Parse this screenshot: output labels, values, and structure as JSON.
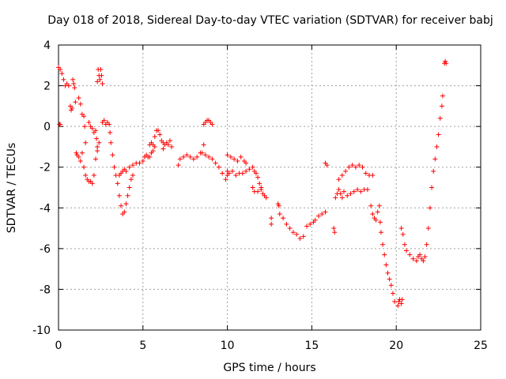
{
  "chart_data": {
    "type": "scatter",
    "title": "Day 018 of 2018, Sidereal Day-to-day VTEC variation (SDTVAR) for receiver babj",
    "xlabel": "GPS time / hours",
    "ylabel": "SDTVAR / TECUs",
    "xlim": [
      0,
      25
    ],
    "ylim": [
      -10,
      4
    ],
    "xticks": [
      0,
      5,
      10,
      15,
      20,
      25
    ],
    "yticks": [
      -10,
      -8,
      -6,
      -4,
      -2,
      0,
      2,
      4
    ],
    "grid": true,
    "marker": "+",
    "color": "#ff0000",
    "series": [
      {
        "name": "SDTVAR",
        "points": [
          [
            0.0,
            2.9
          ],
          [
            0.1,
            2.8
          ],
          [
            0.2,
            2.6
          ],
          [
            0.3,
            2.3
          ],
          [
            0.4,
            2.0
          ],
          [
            0.5,
            2.1
          ],
          [
            0.6,
            2.0
          ],
          [
            0.05,
            0.1
          ],
          [
            0.1,
            0.1
          ],
          [
            0.7,
            1.0
          ],
          [
            0.75,
            0.8
          ],
          [
            0.8,
            0.9
          ],
          [
            0.85,
            2.3
          ],
          [
            0.9,
            2.1
          ],
          [
            0.95,
            1.9
          ],
          [
            1.0,
            1.2
          ],
          [
            1.05,
            -1.3
          ],
          [
            1.1,
            -1.4
          ],
          [
            1.2,
            -1.5
          ],
          [
            1.3,
            -1.7
          ],
          [
            1.4,
            -1.3
          ],
          [
            1.2,
            1.4
          ],
          [
            1.3,
            1.1
          ],
          [
            1.4,
            0.6
          ],
          [
            1.5,
            0.5
          ],
          [
            1.55,
            0.0
          ],
          [
            1.6,
            -0.8
          ],
          [
            1.5,
            -2.0
          ],
          [
            1.6,
            -2.4
          ],
          [
            1.7,
            -2.6
          ],
          [
            1.8,
            -2.7
          ],
          [
            1.9,
            -2.7
          ],
          [
            2.0,
            -2.8
          ],
          [
            2.1,
            -2.4
          ],
          [
            2.2,
            -1.6
          ],
          [
            2.3,
            -1.0
          ],
          [
            2.4,
            -0.8
          ],
          [
            1.8,
            0.2
          ],
          [
            1.9,
            0.0
          ],
          [
            2.0,
            -0.1
          ],
          [
            2.1,
            -0.3
          ],
          [
            2.2,
            -0.2
          ],
          [
            2.25,
            -0.6
          ],
          [
            2.3,
            -1.2
          ],
          [
            2.3,
            2.2
          ],
          [
            2.35,
            2.8
          ],
          [
            2.4,
            2.5
          ],
          [
            2.45,
            2.3
          ],
          [
            2.5,
            2.8
          ],
          [
            2.55,
            2.5
          ],
          [
            2.6,
            2.1
          ],
          [
            2.6,
            0.2
          ],
          [
            2.7,
            0.3
          ],
          [
            2.8,
            0.1
          ],
          [
            2.9,
            0.2
          ],
          [
            3.0,
            0.1
          ],
          [
            3.05,
            -0.3
          ],
          [
            3.1,
            -0.8
          ],
          [
            3.2,
            -1.4
          ],
          [
            3.3,
            -2.0
          ],
          [
            3.4,
            -2.4
          ],
          [
            3.5,
            -2.8
          ],
          [
            3.6,
            -3.4
          ],
          [
            3.7,
            -3.9
          ],
          [
            3.8,
            -4.3
          ],
          [
            3.9,
            -4.2
          ],
          [
            4.0,
            -3.8
          ],
          [
            4.1,
            -3.4
          ],
          [
            4.2,
            -3.0
          ],
          [
            4.3,
            -2.6
          ],
          [
            4.4,
            -2.4
          ],
          [
            3.6,
            -2.4
          ],
          [
            3.7,
            -2.3
          ],
          [
            3.8,
            -2.2
          ],
          [
            3.9,
            -2.1
          ],
          [
            4.0,
            -2.2
          ],
          [
            4.2,
            -2.0
          ],
          [
            4.4,
            -1.9
          ],
          [
            4.6,
            -1.8
          ],
          [
            4.8,
            -1.8
          ],
          [
            5.0,
            -1.7
          ],
          [
            5.1,
            -1.5
          ],
          [
            5.2,
            -1.4
          ],
          [
            5.3,
            -1.5
          ],
          [
            5.4,
            -1.5
          ],
          [
            5.5,
            -1.3
          ],
          [
            5.6,
            -1.2
          ],
          [
            5.7,
            -1.0
          ],
          [
            5.4,
            -0.9
          ],
          [
            5.5,
            -0.8
          ],
          [
            5.6,
            -0.9
          ],
          [
            5.7,
            -0.5
          ],
          [
            5.8,
            -0.2
          ],
          [
            5.9,
            -0.2
          ],
          [
            6.0,
            -0.4
          ],
          [
            6.1,
            -0.7
          ],
          [
            6.2,
            -0.8
          ],
          [
            6.3,
            -0.9
          ],
          [
            6.2,
            -1.1
          ],
          [
            6.4,
            -0.8
          ],
          [
            6.5,
            -0.9
          ],
          [
            6.6,
            -0.7
          ],
          [
            6.7,
            -1.0
          ],
          [
            7.1,
            -1.9
          ],
          [
            7.2,
            -1.6
          ],
          [
            7.4,
            -1.5
          ],
          [
            7.6,
            -1.4
          ],
          [
            7.8,
            -1.5
          ],
          [
            8.0,
            -1.6
          ],
          [
            8.2,
            -1.5
          ],
          [
            8.4,
            -1.3
          ],
          [
            8.5,
            -1.3
          ],
          [
            8.6,
            -0.9
          ],
          [
            8.6,
            0.1
          ],
          [
            8.7,
            0.2
          ],
          [
            8.8,
            0.3
          ],
          [
            8.9,
            0.3
          ],
          [
            9.0,
            0.2
          ],
          [
            9.1,
            0.1
          ],
          [
            8.7,
            -1.4
          ],
          [
            8.9,
            -1.5
          ],
          [
            9.1,
            -1.6
          ],
          [
            9.3,
            -1.8
          ],
          [
            9.5,
            -2.0
          ],
          [
            9.7,
            -2.3
          ],
          [
            9.9,
            -2.6
          ],
          [
            10.0,
            -2.4
          ],
          [
            10.0,
            -1.4
          ],
          [
            10.2,
            -1.5
          ],
          [
            10.4,
            -1.6
          ],
          [
            10.6,
            -1.7
          ],
          [
            10.8,
            -1.5
          ],
          [
            11.0,
            -1.7
          ],
          [
            11.1,
            -1.8
          ],
          [
            10.0,
            -2.2
          ],
          [
            10.1,
            -2.3
          ],
          [
            10.3,
            -2.2
          ],
          [
            10.5,
            -2.4
          ],
          [
            10.7,
            -2.3
          ],
          [
            10.9,
            -2.3
          ],
          [
            11.1,
            -2.2
          ],
          [
            11.3,
            -2.1
          ],
          [
            11.5,
            -2.0
          ],
          [
            11.6,
            -2.2
          ],
          [
            11.5,
            -3.0
          ],
          [
            11.6,
            -3.2
          ],
          [
            11.8,
            -3.2
          ],
          [
            12.0,
            -3.1
          ],
          [
            12.1,
            -3.3
          ],
          [
            12.2,
            -3.4
          ],
          [
            12.3,
            -3.5
          ],
          [
            11.7,
            -2.3
          ],
          [
            11.8,
            -2.5
          ],
          [
            11.9,
            -2.8
          ],
          [
            12.0,
            -3.0
          ],
          [
            12.6,
            -4.5
          ],
          [
            12.6,
            -4.8
          ],
          [
            13.0,
            -3.8
          ],
          [
            13.05,
            -3.9
          ],
          [
            13.1,
            -4.3
          ],
          [
            13.3,
            -4.5
          ],
          [
            13.5,
            -4.8
          ],
          [
            13.7,
            -5.0
          ],
          [
            13.9,
            -5.2
          ],
          [
            14.1,
            -5.3
          ],
          [
            14.3,
            -5.5
          ],
          [
            14.5,
            -5.4
          ],
          [
            14.7,
            -4.9
          ],
          [
            14.9,
            -4.8
          ],
          [
            15.1,
            -4.7
          ],
          [
            15.2,
            -4.6
          ],
          [
            15.4,
            -4.4
          ],
          [
            15.6,
            -4.3
          ],
          [
            15.8,
            -4.2
          ],
          [
            15.8,
            -1.8
          ],
          [
            15.9,
            -1.9
          ],
          [
            16.3,
            -5.0
          ],
          [
            16.35,
            -5.2
          ],
          [
            16.4,
            -3.5
          ],
          [
            16.5,
            -3.3
          ],
          [
            16.6,
            -3.1
          ],
          [
            16.7,
            -3.3
          ],
          [
            16.8,
            -3.5
          ],
          [
            16.9,
            -3.2
          ],
          [
            17.1,
            -3.4
          ],
          [
            17.3,
            -3.3
          ],
          [
            17.5,
            -3.2
          ],
          [
            17.7,
            -3.1
          ],
          [
            17.9,
            -3.2
          ],
          [
            18.1,
            -3.1
          ],
          [
            18.3,
            -3.1
          ],
          [
            16.6,
            -2.6
          ],
          [
            16.8,
            -2.4
          ],
          [
            17.0,
            -2.2
          ],
          [
            17.2,
            -2.0
          ],
          [
            17.4,
            -1.9
          ],
          [
            17.6,
            -2.0
          ],
          [
            17.8,
            -1.9
          ],
          [
            18.0,
            -2.0
          ],
          [
            18.2,
            -2.3
          ],
          [
            18.4,
            -2.4
          ],
          [
            18.6,
            -2.4
          ],
          [
            18.5,
            -3.9
          ],
          [
            18.6,
            -4.3
          ],
          [
            18.7,
            -4.5
          ],
          [
            18.8,
            -4.6
          ],
          [
            18.9,
            -4.2
          ],
          [
            19.0,
            -3.9
          ],
          [
            19.05,
            -4.7
          ],
          [
            19.1,
            -5.2
          ],
          [
            19.2,
            -5.8
          ],
          [
            19.3,
            -6.3
          ],
          [
            19.4,
            -6.8
          ],
          [
            19.5,
            -7.2
          ],
          [
            19.6,
            -7.5
          ],
          [
            19.7,
            -7.8
          ],
          [
            19.8,
            -8.2
          ],
          [
            19.9,
            -8.6
          ],
          [
            20.1,
            -8.8
          ],
          [
            20.15,
            -8.6
          ],
          [
            20.2,
            -8.5
          ],
          [
            20.3,
            -8.7
          ],
          [
            20.35,
            -8.5
          ],
          [
            20.3,
            -5.0
          ],
          [
            20.4,
            -5.3
          ],
          [
            20.5,
            -5.8
          ],
          [
            20.6,
            -6.1
          ],
          [
            20.8,
            -6.3
          ],
          [
            21.0,
            -6.5
          ],
          [
            21.2,
            -6.6
          ],
          [
            21.3,
            -6.4
          ],
          [
            21.4,
            -6.3
          ],
          [
            21.5,
            -6.5
          ],
          [
            21.6,
            -6.6
          ],
          [
            21.7,
            -6.4
          ],
          [
            21.8,
            -5.8
          ],
          [
            21.9,
            -5.0
          ],
          [
            22.0,
            -4.0
          ],
          [
            22.1,
            -3.0
          ],
          [
            22.2,
            -2.2
          ],
          [
            22.3,
            -1.6
          ],
          [
            22.4,
            -1.0
          ],
          [
            22.5,
            -0.4
          ],
          [
            22.6,
            0.4
          ],
          [
            22.7,
            1.0
          ],
          [
            22.75,
            1.5
          ],
          [
            22.85,
            3.1
          ],
          [
            22.9,
            3.2
          ],
          [
            22.95,
            3.1
          ]
        ]
      }
    ]
  }
}
